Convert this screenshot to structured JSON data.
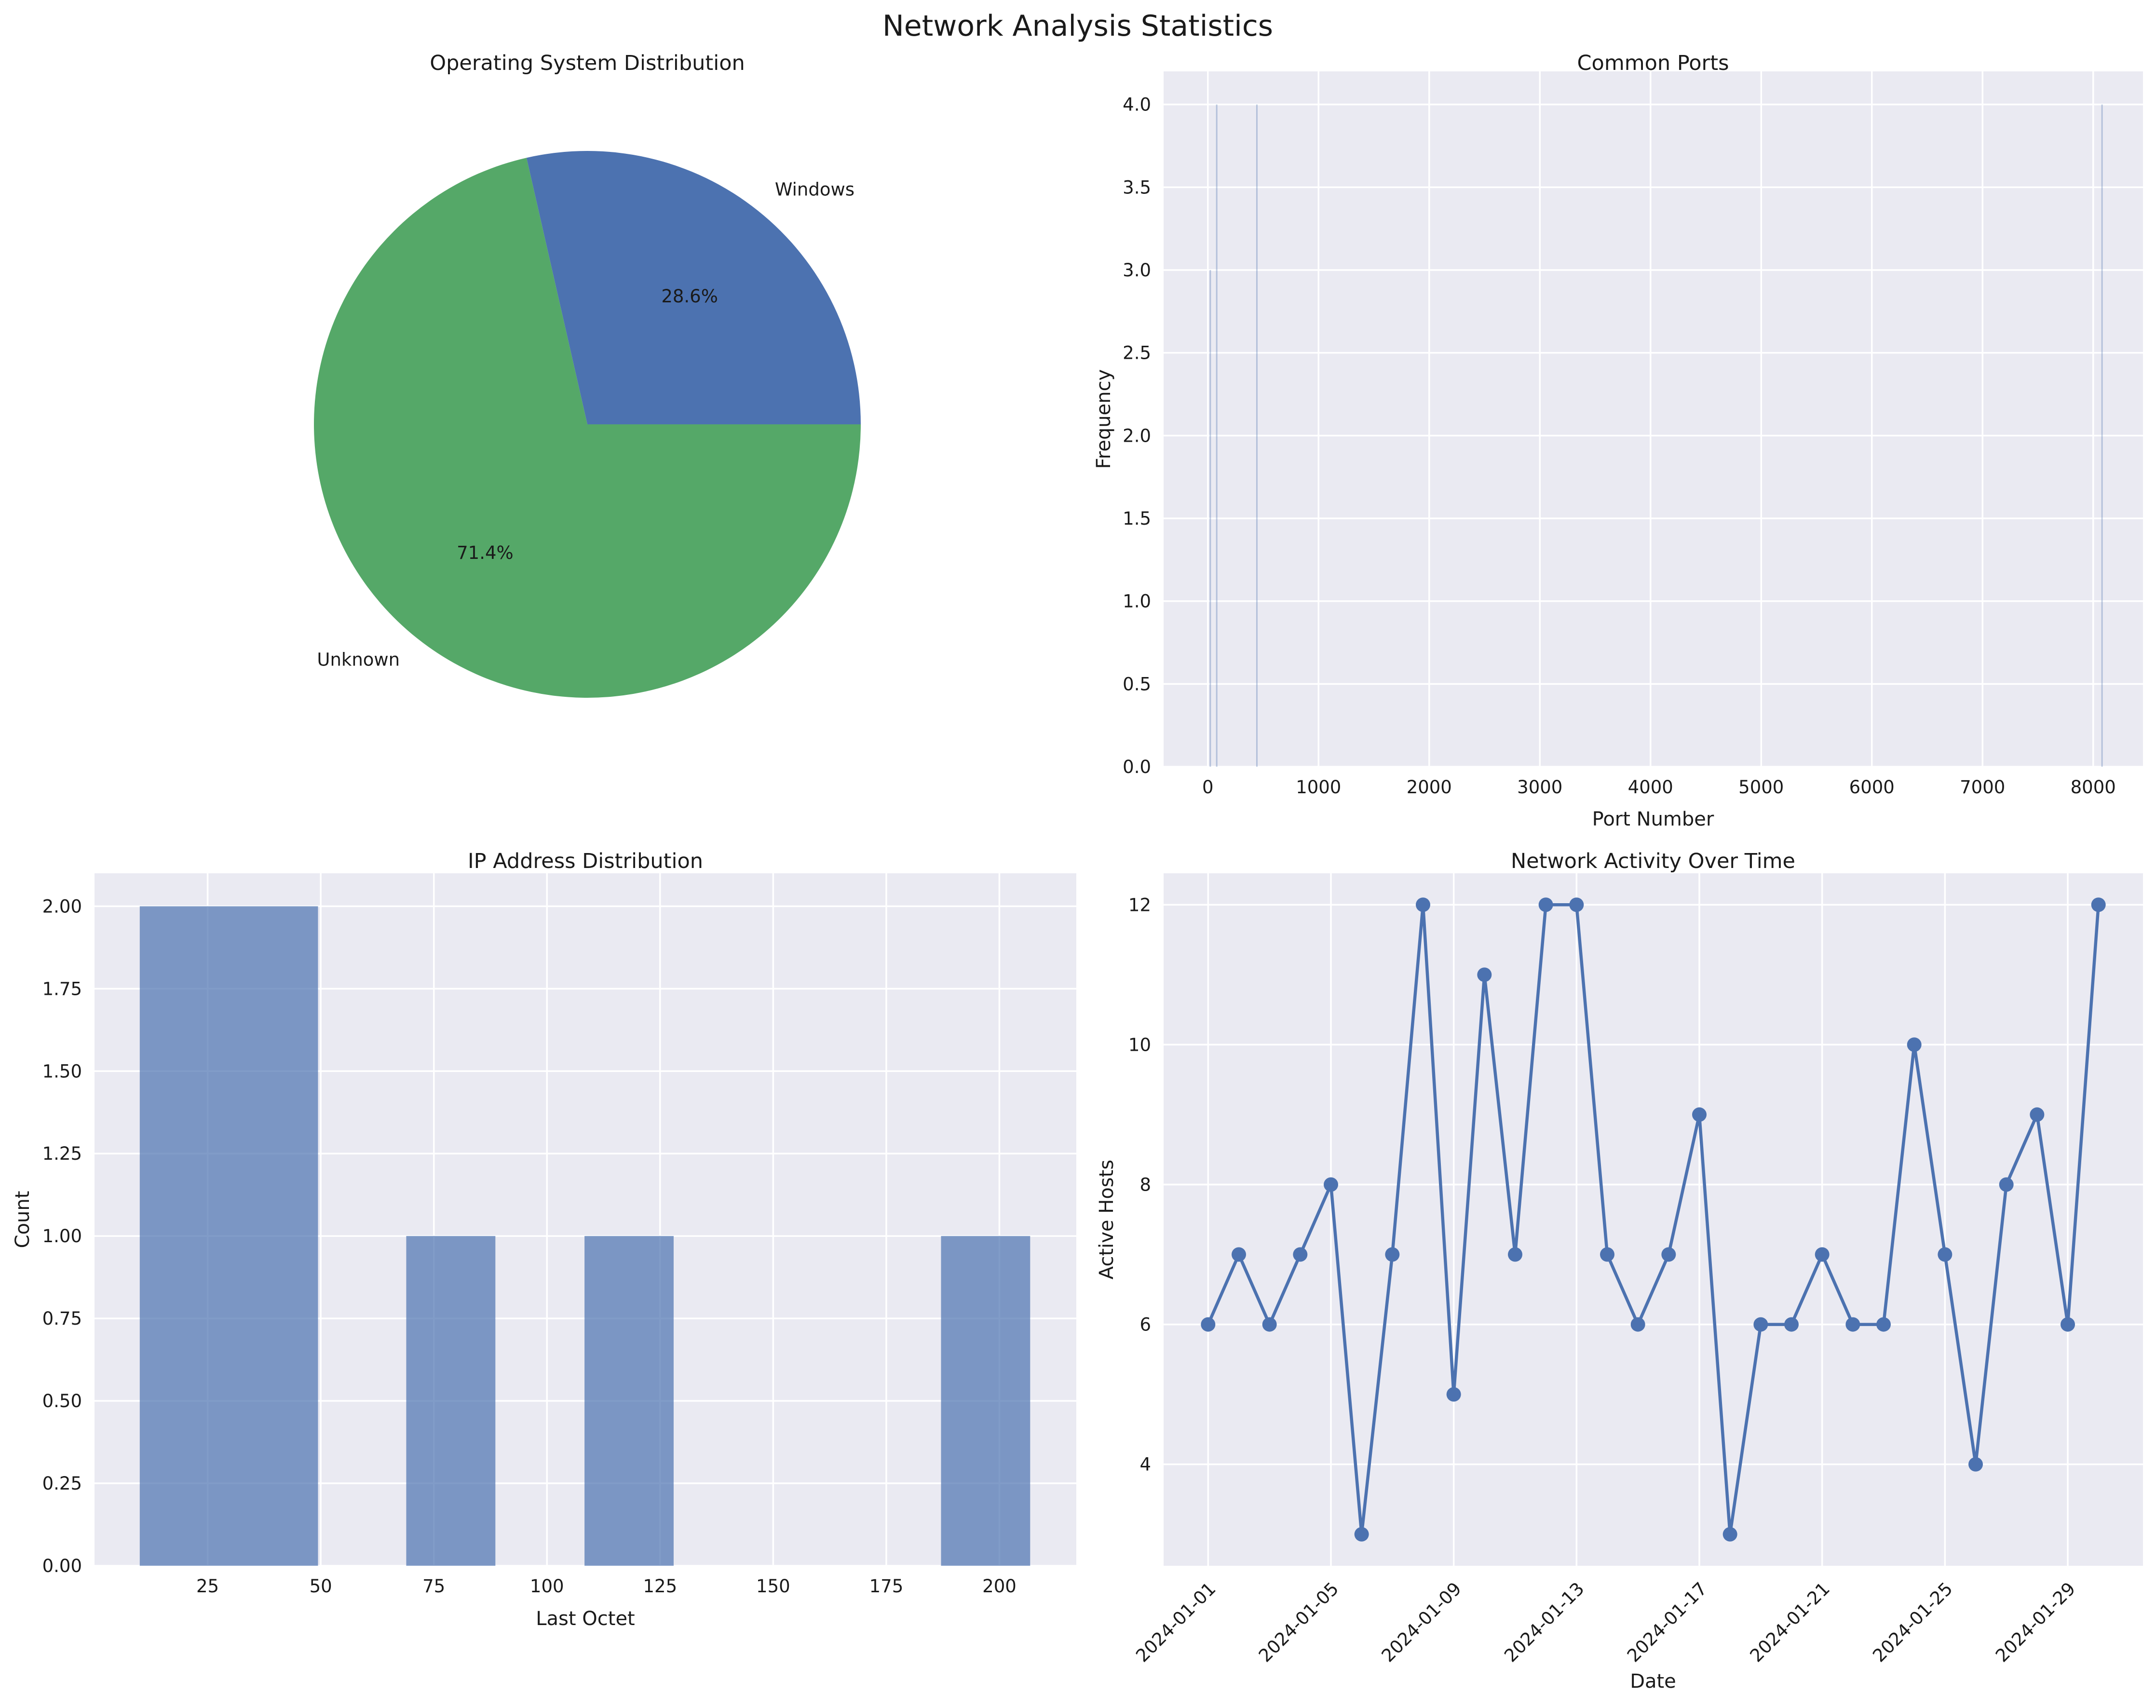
{
  "figure": {
    "title": "Network Analysis Statistics"
  },
  "chart_data": [
    {
      "type": "pie",
      "title": "Operating System Distribution",
      "labels": [
        "Windows",
        "Unknown"
      ],
      "values": [
        2,
        5
      ],
      "autopct": [
        "28.6%",
        "71.4%"
      ],
      "colors": [
        "#4c72b0",
        "#55a868"
      ]
    },
    {
      "type": "bar",
      "title": "Common Ports",
      "xlabel": "Port Number",
      "ylabel": "Frequency",
      "xlim": [
        -400,
        8450
      ],
      "ylim": [
        0,
        4.2
      ],
      "xticks": [
        0,
        1000,
        2000,
        3000,
        4000,
        5000,
        6000,
        7000,
        8000
      ],
      "yticks": [
        "0.0",
        "0.5",
        "1.0",
        "1.5",
        "2.0",
        "2.5",
        "3.0",
        "3.5",
        "4.0"
      ],
      "bars": [
        {
          "x": 22,
          "value": 3
        },
        {
          "x": 80,
          "value": 4
        },
        {
          "x": 443,
          "value": 4
        },
        {
          "x": 8080,
          "value": 4
        }
      ],
      "color": "#4c72b0"
    },
    {
      "type": "histogram",
      "title": "IP Address Distribution",
      "xlabel": "Last Octet",
      "ylabel": "Count",
      "xlim": [
        0,
        217
      ],
      "ylim": [
        0,
        2.1
      ],
      "xticks": [
        25,
        50,
        75,
        100,
        125,
        150,
        175,
        200
      ],
      "yticks": [
        "0.00",
        "0.25",
        "0.50",
        "0.75",
        "1.00",
        "1.25",
        "1.50",
        "1.75",
        "2.00"
      ],
      "bins": [
        {
          "start": 10,
          "end": 49.4,
          "count": 2
        },
        {
          "start": 68.9,
          "end": 88.6,
          "count": 1
        },
        {
          "start": 108.3,
          "end": 128,
          "count": 1
        },
        {
          "start": 187.1,
          "end": 206.8,
          "count": 1
        }
      ],
      "color": "#4c72b0",
      "alpha": 0.7
    },
    {
      "type": "line",
      "title": "Network Activity Over Time",
      "xlabel": "Date",
      "ylabel": "Active Hosts",
      "ylim": [
        2.55,
        12.45
      ],
      "yticks": [
        4,
        6,
        8,
        10,
        12
      ],
      "x": [
        "2024-01-01",
        "2024-01-02",
        "2024-01-03",
        "2024-01-04",
        "2024-01-05",
        "2024-01-06",
        "2024-01-07",
        "2024-01-08",
        "2024-01-09",
        "2024-01-10",
        "2024-01-11",
        "2024-01-12",
        "2024-01-13",
        "2024-01-14",
        "2024-01-15",
        "2024-01-16",
        "2024-01-17",
        "2024-01-18",
        "2024-01-19",
        "2024-01-20",
        "2024-01-21",
        "2024-01-22",
        "2024-01-23",
        "2024-01-24",
        "2024-01-25",
        "2024-01-26",
        "2024-01-27",
        "2024-01-28",
        "2024-01-29",
        "2024-01-30"
      ],
      "values": [
        6,
        7,
        6,
        7,
        8,
        3,
        7,
        12,
        5,
        11,
        7,
        12,
        12,
        7,
        6,
        7,
        9,
        3,
        6,
        6,
        7,
        6,
        6,
        10,
        7,
        4,
        8,
        9,
        6,
        12
      ],
      "xtick_labels": [
        "2024-01-01",
        "2024-01-05",
        "2024-01-09",
        "2024-01-13",
        "2024-01-17",
        "2024-01-21",
        "2024-01-25",
        "2024-01-29"
      ],
      "color": "#4c72b0"
    }
  ]
}
